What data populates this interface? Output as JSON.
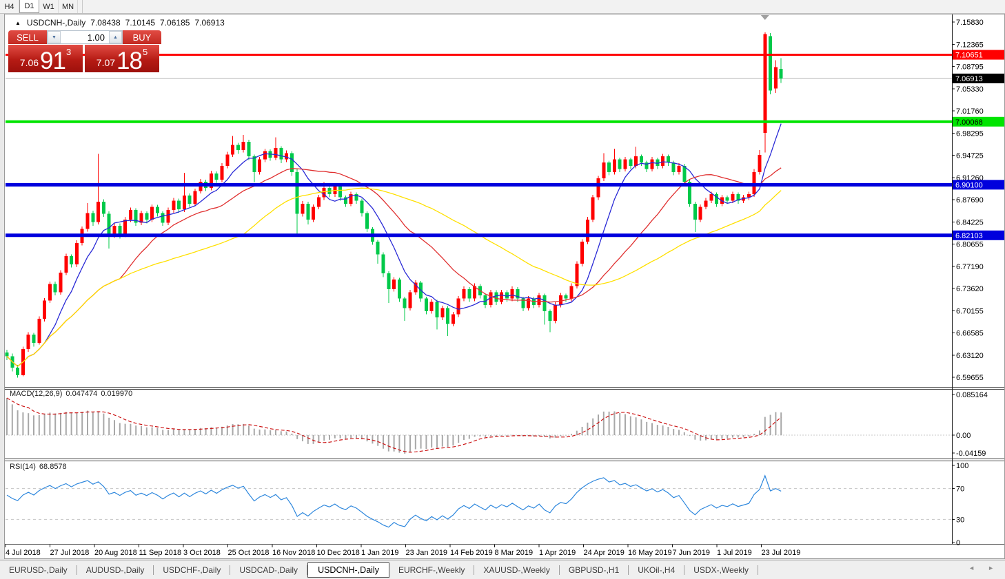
{
  "window": {
    "timeframes": [
      {
        "label": "H4",
        "active": false
      },
      {
        "label": "D1",
        "active": true
      },
      {
        "label": "W1",
        "active": false
      },
      {
        "label": "MN",
        "active": false
      }
    ]
  },
  "ui_icons": {
    "symbol_marker": "▲",
    "spin_down": "▼",
    "spin_up": "▲",
    "tab_left": "◄",
    "tab_right": "►"
  },
  "symbol_line": {
    "symbol": "USDCNH-,Daily",
    "open": "7.08438",
    "high": "7.10145",
    "low": "7.06185",
    "close": "7.06913"
  },
  "trade_widget": {
    "sell_label": "SELL",
    "buy_label": "BUY",
    "volume": "1.00",
    "sell": {
      "prefix": "7.06",
      "big": "91",
      "sup": "3"
    },
    "buy": {
      "prefix": "7.07",
      "big": "18",
      "sup": "5"
    }
  },
  "chart_data": {
    "type": "candlestick",
    "symbol": "USDCNH-",
    "timeframe": "Daily",
    "ylim": [
      6.59655,
      7.1583
    ],
    "price_axis_labels": [
      "7.15830",
      "7.12365",
      "7.08795",
      "7.05330",
      "7.01760",
      "6.98295",
      "6.94725",
      "6.91260",
      "6.87690",
      "6.84225",
      "6.80655",
      "6.77190",
      "6.73620",
      "6.70155",
      "6.66585",
      "6.63120",
      "6.59655"
    ],
    "date_labels": [
      "4 Jul 2018",
      "27 Jul 2018",
      "20 Aug 2018",
      "11 Sep 2018",
      "3 Oct 2018",
      "25 Oct 2018",
      "16 Nov 2018",
      "10 Dec 2018",
      "1 Jan 2019",
      "23 Jan 2019",
      "14 Feb 2019",
      "8 Mar 2019",
      "1 Apr 2019",
      "24 Apr 2019",
      "16 May 2019",
      "7 Jun 2019",
      "1 Jul 2019",
      "23 Jul 2019"
    ],
    "colors": {
      "up": "#ff0000",
      "down": "#00c94a"
    },
    "current_price": {
      "value": 7.06913,
      "label": "7.06913",
      "line_color": "#b4b4b4",
      "badge_bg": "#000000",
      "badge_fg": "#ffffff"
    },
    "hlines": [
      {
        "name": "resistance-line-red",
        "price": 7.10651,
        "label": "7.10651",
        "color": "#ff0000",
        "width": 3,
        "text": "#ffffff"
      },
      {
        "name": "level-line-green",
        "price": 7.00068,
        "label": "7.00068",
        "color": "#00e400",
        "width": 4,
        "text": "#000000"
      },
      {
        "name": "support-line-blue-1",
        "price": 6.901,
        "label": "6.90100",
        "color": "#0000dd",
        "width": 5,
        "text": "#ffffff"
      },
      {
        "name": "support-line-blue-2",
        "price": 6.82103,
        "label": "6.82103",
        "color": "#0000dd",
        "width": 5,
        "text": "#ffffff"
      }
    ],
    "moving_averages": [
      {
        "name": "ma-fast-blue",
        "period": 8,
        "color": "#2929d6"
      },
      {
        "name": "ma-mid-red",
        "period": 22,
        "color": "#e03030"
      },
      {
        "name": "ma-slow-yellow",
        "period": 45,
        "color": "#ffe000"
      }
    ],
    "marker": {
      "shape": "triangle-down",
      "candle_index": 141,
      "color": "#9f9f9f"
    },
    "candles": [
      [
        6.636,
        6.64,
        6.624,
        6.63
      ],
      [
        6.63,
        6.634,
        6.606,
        6.612
      ],
      [
        6.612,
        6.616,
        6.596,
        6.6
      ],
      [
        6.6,
        6.645,
        6.598,
        6.641
      ],
      [
        6.641,
        6.668,
        6.637,
        6.664
      ],
      [
        6.664,
        6.667,
        6.645,
        6.651
      ],
      [
        6.651,
        6.693,
        6.648,
        6.689
      ],
      [
        6.689,
        6.722,
        6.685,
        6.718
      ],
      [
        6.718,
        6.748,
        6.714,
        6.744
      ],
      [
        6.744,
        6.748,
        6.726,
        6.731
      ],
      [
        6.731,
        6.766,
        6.727,
        6.762
      ],
      [
        6.762,
        6.792,
        6.758,
        6.788
      ],
      [
        6.788,
        6.791,
        6.77,
        6.775
      ],
      [
        6.775,
        6.813,
        6.771,
        6.809
      ],
      [
        6.809,
        6.835,
        6.805,
        6.831
      ],
      [
        6.831,
        6.872,
        6.827,
        6.856
      ],
      [
        6.856,
        6.86,
        6.836,
        6.842
      ],
      [
        6.842,
        6.95,
        6.838,
        6.874
      ],
      [
        6.874,
        6.878,
        6.85,
        6.855
      ],
      [
        6.855,
        6.859,
        6.8,
        6.821
      ],
      [
        6.821,
        6.84,
        6.817,
        6.836
      ],
      [
        6.836,
        6.84,
        6.816,
        6.822
      ],
      [
        6.822,
        6.85,
        6.818,
        6.846
      ],
      [
        6.846,
        6.865,
        6.842,
        6.861
      ],
      [
        6.861,
        6.864,
        6.836,
        6.841
      ],
      [
        6.841,
        6.86,
        6.837,
        6.856
      ],
      [
        6.856,
        6.859,
        6.84,
        6.846
      ],
      [
        6.846,
        6.87,
        6.842,
        6.866
      ],
      [
        6.866,
        6.869,
        6.851,
        6.856
      ],
      [
        6.856,
        6.859,
        6.836,
        6.841
      ],
      [
        6.841,
        6.865,
        6.837,
        6.861
      ],
      [
        6.861,
        6.88,
        6.857,
        6.876
      ],
      [
        6.876,
        6.879,
        6.857,
        6.862
      ],
      [
        6.862,
        6.92,
        6.858,
        6.884
      ],
      [
        6.884,
        6.887,
        6.866,
        6.871
      ],
      [
        6.871,
        6.895,
        6.867,
        6.891
      ],
      [
        6.891,
        6.91,
        6.887,
        6.906
      ],
      [
        6.906,
        6.909,
        6.891,
        6.896
      ],
      [
        6.896,
        6.923,
        6.892,
        6.919
      ],
      [
        6.919,
        6.922,
        6.904,
        6.909
      ],
      [
        6.909,
        6.935,
        6.905,
        6.931
      ],
      [
        6.931,
        6.953,
        6.927,
        6.949
      ],
      [
        6.949,
        6.978,
        6.945,
        6.964
      ],
      [
        6.964,
        6.967,
        6.95,
        6.956
      ],
      [
        6.956,
        6.98,
        6.952,
        6.969
      ],
      [
        6.969,
        6.972,
        6.94,
        6.946
      ],
      [
        6.946,
        6.949,
        6.905,
        6.921
      ],
      [
        6.921,
        6.945,
        6.917,
        6.941
      ],
      [
        6.941,
        6.958,
        6.937,
        6.954
      ],
      [
        6.954,
        6.957,
        6.939,
        6.944
      ],
      [
        6.944,
        6.976,
        6.94,
        6.959
      ],
      [
        6.959,
        6.962,
        6.935,
        6.941
      ],
      [
        6.941,
        6.955,
        6.937,
        6.951
      ],
      [
        6.951,
        6.954,
        6.915,
        6.921
      ],
      [
        6.921,
        6.926,
        6.82,
        6.855
      ],
      [
        6.855,
        6.875,
        6.851,
        6.871
      ],
      [
        6.871,
        6.874,
        6.838,
        6.846
      ],
      [
        6.846,
        6.87,
        6.842,
        6.866
      ],
      [
        6.866,
        6.885,
        6.862,
        6.881
      ],
      [
        6.881,
        6.905,
        6.877,
        6.896
      ],
      [
        6.896,
        6.899,
        6.881,
        6.886
      ],
      [
        6.886,
        6.903,
        6.882,
        6.899
      ],
      [
        6.899,
        6.902,
        6.876,
        6.881
      ],
      [
        6.881,
        6.884,
        6.866,
        6.871
      ],
      [
        6.871,
        6.89,
        6.867,
        6.886
      ],
      [
        6.886,
        6.889,
        6.871,
        6.876
      ],
      [
        6.876,
        6.879,
        6.851,
        6.856
      ],
      [
        6.856,
        6.859,
        6.826,
        6.831
      ],
      [
        6.831,
        6.834,
        6.806,
        6.811
      ],
      [
        6.811,
        6.814,
        6.776,
        6.791
      ],
      [
        6.791,
        6.794,
        6.755,
        6.761
      ],
      [
        6.761,
        6.764,
        6.714,
        6.736
      ],
      [
        6.736,
        6.755,
        6.732,
        6.751
      ],
      [
        6.751,
        6.754,
        6.716,
        6.721
      ],
      [
        6.721,
        6.724,
        6.686,
        6.706
      ],
      [
        6.706,
        6.735,
        6.702,
        6.731
      ],
      [
        6.731,
        6.75,
        6.727,
        6.746
      ],
      [
        6.746,
        6.749,
        6.716,
        6.721
      ],
      [
        6.721,
        6.724,
        6.696,
        6.701
      ],
      [
        6.701,
        6.72,
        6.697,
        6.716
      ],
      [
        6.716,
        6.719,
        6.672,
        6.691
      ],
      [
        6.691,
        6.71,
        6.687,
        6.706
      ],
      [
        6.706,
        6.709,
        6.662,
        6.681
      ],
      [
        6.681,
        6.7,
        6.677,
        6.696
      ],
      [
        6.696,
        6.725,
        6.692,
        6.721
      ],
      [
        6.721,
        6.74,
        6.717,
        6.736
      ],
      [
        6.736,
        6.739,
        6.716,
        6.721
      ],
      [
        6.721,
        6.745,
        6.717,
        6.741
      ],
      [
        6.741,
        6.744,
        6.721,
        6.726
      ],
      [
        6.726,
        6.729,
        6.706,
        6.711
      ],
      [
        6.711,
        6.735,
        6.707,
        6.731
      ],
      [
        6.731,
        6.734,
        6.711,
        6.716
      ],
      [
        6.716,
        6.735,
        6.712,
        6.731
      ],
      [
        6.731,
        6.734,
        6.716,
        6.721
      ],
      [
        6.721,
        6.74,
        6.717,
        6.736
      ],
      [
        6.736,
        6.739,
        6.716,
        6.721
      ],
      [
        6.721,
        6.724,
        6.701,
        6.706
      ],
      [
        6.706,
        6.725,
        6.702,
        6.721
      ],
      [
        6.721,
        6.724,
        6.706,
        6.711
      ],
      [
        6.711,
        6.73,
        6.707,
        6.726
      ],
      [
        6.726,
        6.729,
        6.68,
        6.701
      ],
      [
        6.701,
        6.704,
        6.668,
        6.686
      ],
      [
        6.686,
        6.715,
        6.682,
        6.711
      ],
      [
        6.711,
        6.73,
        6.707,
        6.726
      ],
      [
        6.726,
        6.729,
        6.716,
        6.721
      ],
      [
        6.721,
        6.745,
        6.717,
        6.741
      ],
      [
        6.741,
        6.78,
        6.737,
        6.776
      ],
      [
        6.776,
        6.815,
        6.772,
        6.811
      ],
      [
        6.811,
        6.85,
        6.807,
        6.846
      ],
      [
        6.846,
        6.885,
        6.842,
        6.881
      ],
      [
        6.881,
        6.915,
        6.877,
        6.911
      ],
      [
        6.911,
        6.951,
        6.907,
        6.936
      ],
      [
        6.936,
        6.939,
        6.916,
        6.921
      ],
      [
        6.921,
        6.958,
        6.917,
        6.941
      ],
      [
        6.941,
        6.944,
        6.921,
        6.926
      ],
      [
        6.926,
        6.945,
        6.922,
        6.941
      ],
      [
        6.941,
        6.944,
        6.926,
        6.931
      ],
      [
        6.931,
        6.961,
        6.927,
        6.946
      ],
      [
        6.946,
        6.949,
        6.931,
        6.936
      ],
      [
        6.936,
        6.939,
        6.921,
        6.926
      ],
      [
        6.926,
        6.945,
        6.922,
        6.941
      ],
      [
        6.941,
        6.944,
        6.926,
        6.931
      ],
      [
        6.931,
        6.95,
        6.927,
        6.946
      ],
      [
        6.946,
        6.949,
        6.931,
        6.936
      ],
      [
        6.936,
        6.939,
        6.916,
        6.921
      ],
      [
        6.921,
        6.935,
        6.917,
        6.931
      ],
      [
        6.931,
        6.934,
        6.901,
        6.906
      ],
      [
        6.906,
        6.909,
        6.866,
        6.871
      ],
      [
        6.871,
        6.874,
        6.826,
        6.846
      ],
      [
        6.846,
        6.87,
        6.842,
        6.866
      ],
      [
        6.866,
        6.88,
        6.862,
        6.876
      ],
      [
        6.876,
        6.89,
        6.872,
        6.886
      ],
      [
        6.886,
        6.889,
        6.866,
        6.871
      ],
      [
        6.871,
        6.885,
        6.867,
        6.881
      ],
      [
        6.881,
        6.884,
        6.871,
        6.876
      ],
      [
        6.876,
        6.89,
        6.872,
        6.886
      ],
      [
        6.886,
        6.889,
        6.871,
        6.876
      ],
      [
        6.876,
        6.885,
        6.872,
        6.881
      ],
      [
        6.881,
        6.89,
        6.877,
        6.886
      ],
      [
        6.886,
        6.926,
        6.882,
        6.921
      ],
      [
        6.921,
        6.956,
        6.917,
        6.948
      ],
      [
        6.983,
        7.142,
        6.952,
        7.139
      ],
      [
        7.136,
        7.141,
        7.044,
        7.05
      ],
      [
        7.053,
        7.098,
        7.046,
        7.087
      ],
      [
        7.084,
        7.101,
        7.062,
        7.069
      ]
    ]
  },
  "macd": {
    "title": "MACD(12,26,9)",
    "value_main": "0.047474",
    "value_signal": "0.019970",
    "axis_labels": [
      "0.085164",
      "0.00",
      "-0.04159"
    ],
    "fast": 6,
    "slow": 13,
    "signal_period": 5,
    "init_gap": 0.1,
    "bar_color": "#a8a8a8",
    "signal_color": "#cc1414"
  },
  "rsi": {
    "title": "RSI(14)",
    "value": "68.8578",
    "axis_labels": [
      "100",
      "70",
      "30",
      "0"
    ],
    "levels": [
      70,
      30
    ],
    "period": 10,
    "color": "#2d87dd",
    "level_color": "#c4c4c4"
  },
  "tabs": {
    "items": [
      {
        "label": "EURUSD-,Daily",
        "active": false
      },
      {
        "label": "AUDUSD-,Daily",
        "active": false
      },
      {
        "label": "USDCHF-,Daily",
        "active": false
      },
      {
        "label": "USDCAD-,Daily",
        "active": false
      },
      {
        "label": "USDCNH-,Daily",
        "active": true
      },
      {
        "label": "EURCHF-,Weekly",
        "active": false
      },
      {
        "label": "XAUUSD-,Weekly",
        "active": false
      },
      {
        "label": "GBPUSD-,H1",
        "active": false
      },
      {
        "label": "UKOil-,H4",
        "active": false
      },
      {
        "label": "USDX-,Weekly",
        "active": false
      }
    ]
  }
}
